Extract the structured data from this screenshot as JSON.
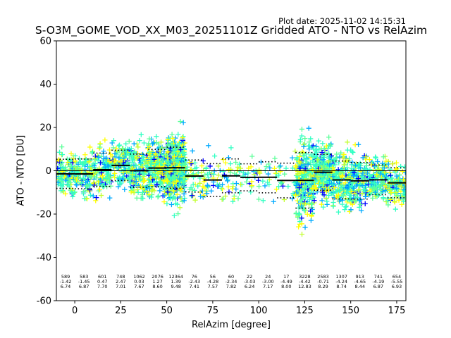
{
  "chart_data": {
    "type": "scatter",
    "plot_date": "Plot date: 2025-11-02 14:15:31",
    "title": "S-O3M_GOME_VOD_XX_M03_20251101Z Gridded ATO - NTO vs RelAzim",
    "xlabel": "RelAzim [degree]",
    "ylabel": "ATO - NTO [DU]",
    "xlim": [
      -10,
      180
    ],
    "ylim": [
      -60,
      60
    ],
    "xticks": [
      0,
      25,
      50,
      75,
      100,
      125,
      150,
      175
    ],
    "yticks": [
      -60,
      -40,
      -20,
      0,
      20,
      40,
      60
    ],
    "grid": false,
    "marker": "+",
    "point_colors": [
      "#0000ff",
      "#00aaff",
      "#32ffc3",
      "#5dff9a",
      "#c3ff32",
      "#ffff00"
    ],
    "zero_line": 0,
    "bins": [
      {
        "x": -5,
        "count": "589",
        "mean": "-1.42",
        "std": "6.74"
      },
      {
        "x": 5,
        "count": "583",
        "mean": "-1.45",
        "std": "6.87"
      },
      {
        "x": 15,
        "count": "601",
        "mean": "0.47",
        "std": "7.70"
      },
      {
        "x": 25,
        "count": "748",
        "mean": "2.47",
        "std": "7.01"
      },
      {
        "x": 35,
        "count": "1062",
        "mean": "0.03",
        "std": "7.67"
      },
      {
        "x": 45,
        "count": "2076",
        "mean": "1.27",
        "std": "8.60"
      },
      {
        "x": 55,
        "count": "12364",
        "mean": "1.39",
        "std": "9.48"
      },
      {
        "x": 65,
        "count": "76",
        "mean": "-2.43",
        "std": "7.41"
      },
      {
        "x": 75,
        "count": "56",
        "mean": "-4.28",
        "std": "7.57"
      },
      {
        "x": 85,
        "count": "60",
        "mean": "-2.34",
        "std": "7.82"
      },
      {
        "x": 95,
        "count": "22",
        "mean": "-3.03",
        "std": "6.24"
      },
      {
        "x": 105,
        "count": "24",
        "mean": "-3.00",
        "std": "7.17"
      },
      {
        "x": 115,
        "count": "17",
        "mean": "-4.49",
        "std": "8.00"
      },
      {
        "x": 125,
        "count": "3228",
        "mean": "-4.42",
        "std": "12.83"
      },
      {
        "x": 135,
        "count": "2583",
        "mean": "-0.71",
        "std": "8.29"
      },
      {
        "x": 145,
        "count": "1307",
        "mean": "-4.24",
        "std": "8.74"
      },
      {
        "x": 155,
        "count": "913",
        "mean": "-4.65",
        "std": "8.44"
      },
      {
        "x": 165,
        "count": "741",
        "mean": "-4.19",
        "std": "6.87"
      },
      {
        "x": 175,
        "count": "654",
        "mean": "-5.55",
        "std": "6.93"
      }
    ]
  }
}
